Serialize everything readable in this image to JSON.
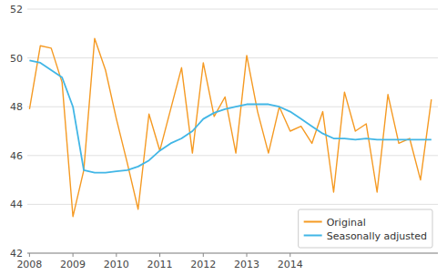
{
  "chart_data": {
    "type": "line",
    "x": [
      2008,
      2008.25,
      2008.5,
      2008.75,
      2009,
      2009.25,
      2009.5,
      2009.75,
      2010,
      2010.25,
      2010.5,
      2010.75,
      2011,
      2011.25,
      2011.5,
      2011.75,
      2012,
      2012.25,
      2012.5,
      2012.75,
      2013,
      2013.25,
      2013.5,
      2013.75,
      2014,
      2014.25,
      2014.5,
      2014.75,
      2015,
      2015.25,
      2015.5,
      2015.75,
      2016,
      2016.25,
      2016.5,
      2016.75,
      2017,
      2017.25
    ],
    "series": [
      {
        "name": "Original",
        "color": "#f59a23",
        "values": [
          47.9,
          50.5,
          50.4,
          49.0,
          43.5,
          45.4,
          50.8,
          49.5,
          47.5,
          45.7,
          43.8,
          47.7,
          46.2,
          47.9,
          49.6,
          46.1,
          49.8,
          47.6,
          48.4,
          46.1,
          50.1,
          47.8,
          46.1,
          48.0,
          47.0,
          47.2,
          46.5,
          47.8,
          44.5,
          48.6,
          47.0,
          47.3,
          44.5,
          48.5,
          46.5,
          46.7,
          45.0,
          48.3
        ]
      },
      {
        "name": "Seasonally adjusted",
        "color": "#41b6e6",
        "values": [
          49.9,
          49.8,
          49.5,
          49.2,
          48.0,
          45.4,
          45.3,
          45.3,
          45.35,
          45.4,
          45.55,
          45.8,
          46.2,
          46.5,
          46.7,
          47.0,
          47.5,
          47.75,
          47.9,
          48.0,
          48.1,
          48.1,
          48.1,
          48.0,
          47.8,
          47.5,
          47.2,
          46.9,
          46.7,
          46.7,
          46.65,
          46.7,
          46.65,
          46.65,
          46.65,
          46.65,
          46.65,
          46.65
        ]
      }
    ],
    "xlim": [
      2007.95,
      2017.4
    ],
    "xticks": [
      2008,
      2009,
      2010,
      2011,
      2012,
      2013,
      2014
    ],
    "ylim": [
      42,
      52
    ],
    "yticks": [
      42,
      44,
      46,
      48,
      50,
      52
    ],
    "grid": true,
    "legend": "lower right"
  }
}
